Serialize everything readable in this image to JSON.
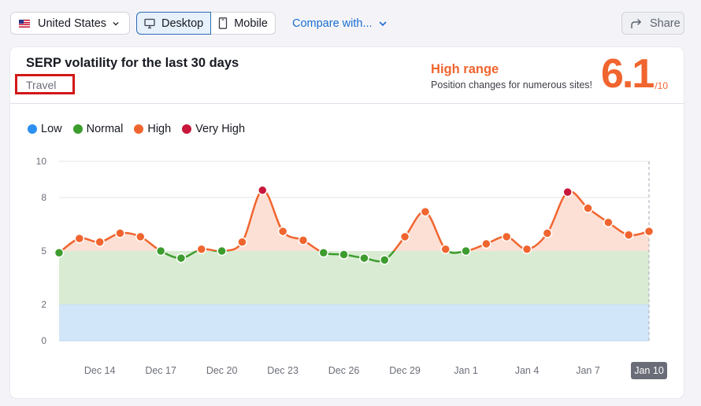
{
  "toolbar": {
    "country": "United States",
    "country_flag_icon": "us-flag-icon",
    "devices": [
      {
        "label": "Desktop",
        "icon": "desktop-icon",
        "active": true
      },
      {
        "label": "Mobile",
        "icon": "mobile-icon",
        "active": false
      }
    ],
    "compare_label": "Compare with...",
    "share_label": "Share"
  },
  "card": {
    "title": "SERP volatility for the last 30 days",
    "category": "Travel",
    "range_title": "High range",
    "range_desc": "Position changes for numerous sites!",
    "score": "6.1",
    "score_max": "/10"
  },
  "legend": [
    {
      "label": "Low",
      "color": "#2d8ff0"
    },
    {
      "label": "Normal",
      "color": "#3d9c2e"
    },
    {
      "label": "High",
      "color": "#f0652f"
    },
    {
      "label": "Very High",
      "color": "#c8173a"
    }
  ],
  "colors": {
    "low": "#2d8ff0",
    "normal": "#3d9c2e",
    "high": "#f0652f",
    "very_high": "#c8173a",
    "low_band": "#d1e6f9",
    "normal_band": "#d9ecd3",
    "high_fill": "#fde0d5"
  },
  "chart_data": {
    "type": "line",
    "title": "SERP volatility for the last 30 days",
    "xlabel": "",
    "ylabel": "",
    "ylim": [
      0,
      10
    ],
    "yticks": [
      0,
      2,
      5,
      8,
      10
    ],
    "bands": [
      {
        "name": "Low",
        "from": 0,
        "to": 2
      },
      {
        "name": "Normal",
        "from": 2,
        "to": 5
      },
      {
        "name": "High",
        "from": 5,
        "to": 8
      },
      {
        "name": "Very High",
        "from": 8,
        "to": 10
      }
    ],
    "x_tick_labels": [
      "Dec 14",
      "Dec 17",
      "Dec 20",
      "Dec 23",
      "Dec 26",
      "Dec 29",
      "Jan 1",
      "Jan 4",
      "Jan 7",
      "Jan 10"
    ],
    "highlighted_x": "Jan 10",
    "categories": [
      "Dec 12",
      "Dec 13",
      "Dec 14",
      "Dec 15",
      "Dec 16",
      "Dec 17",
      "Dec 18",
      "Dec 19",
      "Dec 20",
      "Dec 21",
      "Dec 22",
      "Dec 23",
      "Dec 24",
      "Dec 25",
      "Dec 26",
      "Dec 27",
      "Dec 28",
      "Dec 29",
      "Dec 30",
      "Dec 31",
      "Jan 1",
      "Jan 2",
      "Jan 3",
      "Jan 4",
      "Jan 5",
      "Jan 6",
      "Jan 7",
      "Jan 8",
      "Jan 9",
      "Jan 10"
    ],
    "series": [
      {
        "name": "Volatility",
        "values": [
          4.9,
          5.7,
          5.5,
          6.0,
          5.8,
          5.0,
          4.6,
          5.1,
          5.0,
          5.5,
          8.4,
          6.1,
          5.6,
          4.9,
          4.8,
          4.6,
          4.5,
          5.8,
          7.2,
          5.1,
          5.0,
          5.4,
          5.8,
          5.1,
          6.0,
          8.3,
          7.4,
          6.6,
          5.9,
          6.1
        ]
      }
    ],
    "grid": true,
    "legend_position": "top-left"
  }
}
